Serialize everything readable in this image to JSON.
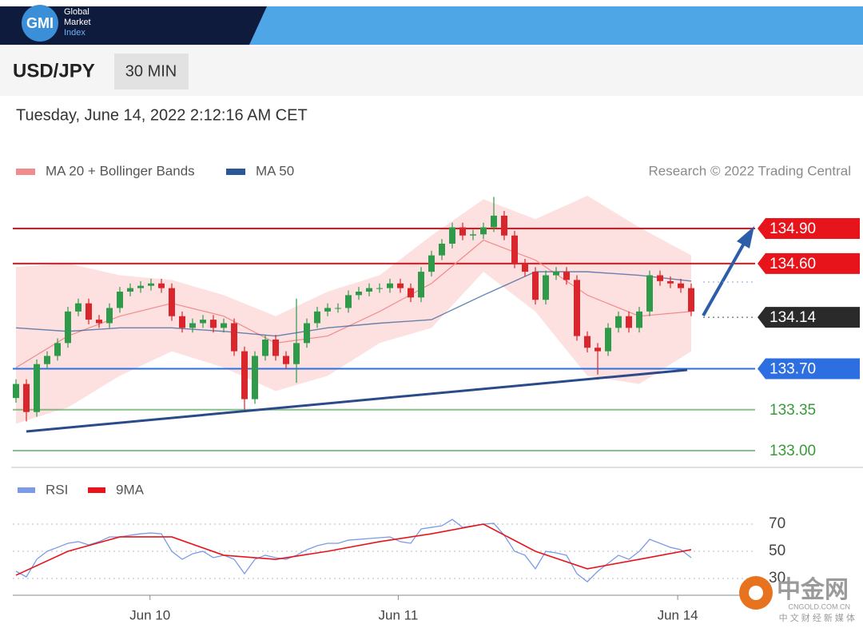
{
  "header": {
    "logo": "GMI",
    "brand": [
      "Global",
      "Market",
      "Index"
    ]
  },
  "watermark": {
    "name": "中金网",
    "site": "CNGOLD.COM.CN",
    "tagline": "中 文 财 经 新 媒 体"
  },
  "chart_data": [
    {
      "type": "candlestick",
      "title": "USD/JPY",
      "timeframe": "30 MIN",
      "subtitle": "Tuesday, June 14, 2022 2:12:16 AM CET",
      "credit": "Research © 2022 Trading Central",
      "up_color": "#2f9a4a",
      "down_color": "#d8262c",
      "x": [
        0,
        1,
        2,
        3,
        4,
        5,
        6,
        7,
        8,
        9,
        10,
        11,
        12,
        13,
        14,
        15,
        16,
        17,
        18,
        19,
        20,
        21,
        22,
        23,
        24,
        25,
        26,
        27,
        28,
        29,
        30,
        31,
        32,
        33,
        34,
        35,
        36,
        37,
        38,
        39,
        40,
        41,
        42,
        43,
        44,
        45,
        46,
        47,
        48,
        49,
        50,
        51,
        52,
        53,
        54,
        55,
        56,
        57,
        58,
        59,
        60,
        61,
        62,
        63,
        64,
        65
      ],
      "open": [
        133.45,
        133.57,
        133.33,
        133.74,
        133.81,
        133.92,
        134.19,
        134.26,
        134.12,
        134.09,
        134.22,
        134.36,
        134.39,
        134.41,
        134.43,
        134.39,
        134.15,
        134.05,
        134.09,
        134.12,
        134.05,
        134.09,
        133.85,
        133.44,
        133.81,
        133.95,
        133.81,
        133.74,
        133.92,
        134.09,
        134.19,
        134.22,
        134.22,
        134.33,
        134.36,
        134.39,
        134.39,
        134.43,
        134.39,
        134.31,
        134.53,
        134.67,
        134.77,
        134.91,
        134.84,
        134.85,
        134.91,
        135.01,
        134.84,
        134.6,
        134.53,
        134.29,
        134.5,
        134.53,
        134.46,
        133.98,
        133.88,
        133.85,
        134.05,
        134.15,
        134.05,
        134.19,
        134.5,
        134.45,
        134.43,
        134.39
      ],
      "high": [
        133.61,
        133.61,
        133.78,
        133.85,
        133.96,
        134.23,
        134.3,
        134.3,
        134.16,
        134.26,
        134.4,
        134.43,
        134.45,
        134.47,
        134.47,
        134.43,
        134.19,
        134.13,
        134.16,
        134.16,
        134.13,
        134.13,
        133.89,
        133.85,
        133.99,
        133.99,
        133.85,
        134.3,
        134.13,
        134.23,
        134.26,
        134.26,
        134.37,
        134.4,
        134.43,
        134.43,
        134.47,
        134.47,
        134.43,
        134.57,
        134.71,
        134.81,
        134.95,
        134.95,
        134.89,
        134.95,
        135.17,
        135.05,
        134.88,
        134.64,
        134.57,
        134.54,
        134.57,
        134.57,
        134.5,
        134.02,
        133.92,
        134.09,
        134.19,
        134.19,
        134.23,
        134.54,
        134.54,
        134.49,
        134.47,
        134.43
      ],
      "low": [
        133.41,
        133.25,
        133.29,
        133.7,
        133.77,
        133.88,
        134.15,
        134.08,
        134.05,
        134.05,
        134.18,
        134.32,
        134.35,
        134.37,
        134.35,
        134.11,
        134.01,
        134.01,
        134.05,
        134.01,
        134.01,
        133.81,
        133.35,
        133.4,
        133.77,
        133.77,
        133.7,
        133.58,
        133.88,
        134.05,
        134.15,
        134.18,
        134.18,
        134.29,
        134.32,
        134.35,
        134.35,
        134.35,
        134.27,
        134.27,
        134.49,
        134.63,
        134.73,
        134.8,
        134.8,
        134.81,
        134.87,
        134.8,
        134.56,
        134.49,
        134.25,
        134.25,
        134.46,
        134.42,
        133.94,
        133.84,
        133.65,
        133.81,
        134.01,
        134.01,
        134.01,
        134.15,
        134.41,
        134.39,
        134.35,
        134.15
      ],
      "close": [
        133.57,
        133.33,
        133.74,
        133.81,
        133.92,
        134.19,
        134.26,
        134.12,
        134.09,
        134.22,
        134.36,
        134.39,
        134.41,
        134.43,
        134.39,
        134.15,
        134.05,
        134.09,
        134.12,
        134.05,
        134.09,
        133.85,
        133.44,
        133.81,
        133.95,
        133.81,
        133.74,
        133.92,
        134.09,
        134.19,
        134.22,
        134.22,
        134.33,
        134.36,
        134.39,
        134.39,
        134.43,
        134.39,
        134.31,
        134.53,
        134.67,
        134.77,
        134.91,
        134.84,
        134.85,
        134.91,
        135.01,
        134.84,
        134.6,
        134.53,
        134.29,
        134.5,
        134.53,
        134.46,
        133.98,
        133.88,
        133.85,
        134.05,
        134.15,
        134.05,
        134.19,
        134.5,
        134.45,
        134.43,
        134.39,
        134.19
      ],
      "overlays": [
        {
          "name": "MA 20 + Bollinger Bands",
          "color": "#f28b8b",
          "band_color": "#fde0e0",
          "x": [
            0,
            5,
            10,
            15,
            20,
            25,
            30,
            35,
            40,
            45,
            50,
            55,
            60,
            65
          ],
          "values": [
            133.71,
            133.98,
            134.15,
            134.26,
            134.15,
            133.92,
            133.98,
            134.19,
            134.43,
            134.8,
            134.63,
            134.33,
            134.15,
            134.19
          ],
          "upper": [
            134.57,
            134.6,
            134.5,
            134.46,
            134.33,
            134.15,
            134.36,
            134.5,
            134.84,
            135.15,
            134.98,
            135.18,
            134.91,
            134.67
          ],
          "lower": [
            133.23,
            133.37,
            133.64,
            133.85,
            133.71,
            133.51,
            133.64,
            133.92,
            134.05,
            134.53,
            134.19,
            133.64,
            133.57,
            133.85
          ]
        },
        {
          "name": "MA 50",
          "color": "#2b5797",
          "x": [
            0,
            5,
            10,
            15,
            20,
            25,
            30,
            35,
            40,
            45,
            50,
            55,
            60,
            65
          ],
          "values": [
            134.05,
            134.02,
            134.05,
            134.05,
            134.02,
            133.98,
            134.05,
            134.09,
            134.12,
            134.33,
            134.53,
            134.53,
            134.5,
            134.45
          ]
        }
      ],
      "levels": [
        {
          "value": 134.9,
          "label": "134.90",
          "color": "#e8141b",
          "style": "box",
          "line": "solid"
        },
        {
          "value": 134.6,
          "label": "134.60",
          "color": "#e8141b",
          "style": "box",
          "line": "solid"
        },
        {
          "value": 134.14,
          "label": "134.14",
          "color": "#2a2a2a",
          "style": "box",
          "line": "dotted"
        },
        {
          "value": 133.7,
          "label": "133.70",
          "color": "#2d6fe0",
          "style": "box",
          "line": "solid"
        },
        {
          "value": 133.35,
          "label": "133.35",
          "color": "#3a9a3a",
          "style": "text",
          "line": "solid"
        },
        {
          "value": 133,
          "label": "133.00",
          "color": "#3a9a3a",
          "style": "text",
          "line": "solid"
        }
      ],
      "xlim": [
        -0.5,
        66.5
      ],
      "ylim": [
        132.9,
        135.2
      ],
      "xticks": [
        {
          "value": 12.9,
          "label": "Jun 10"
        },
        {
          "value": 36.8,
          "label": "Jun 11"
        },
        {
          "value": 63.7,
          "label": "Jun 14"
        }
      ]
    },
    {
      "type": "line",
      "series": [
        {
          "name": "RSI",
          "color": "#7b9be6",
          "x": [
            0,
            1,
            2,
            3,
            4,
            5,
            6,
            7,
            8,
            9,
            10,
            11,
            12,
            13,
            14,
            15,
            16,
            17,
            18,
            19,
            20,
            21,
            22,
            23,
            24,
            25,
            26,
            27,
            28,
            29,
            30,
            31,
            32,
            33,
            34,
            35,
            36,
            37,
            38,
            39,
            40,
            41,
            42,
            43,
            44,
            45,
            46,
            47,
            48,
            49,
            50,
            51,
            52,
            53,
            54,
            55,
            56,
            57,
            58,
            59,
            60,
            61,
            62,
            63,
            64,
            65
          ],
          "values": [
            35.3,
            31.2,
            44.1,
            50,
            52.9,
            55.9,
            57.1,
            54.7,
            57.1,
            60.6,
            60.6,
            61.8,
            62.9,
            63.5,
            62.9,
            50,
            44.1,
            48.2,
            50,
            45.3,
            47.1,
            44.1,
            33.5,
            44.1,
            47.1,
            45.3,
            44.1,
            47.1,
            51.2,
            54.1,
            55.9,
            55.9,
            58.2,
            58.8,
            59.4,
            60,
            60.6,
            57.1,
            55.9,
            66.5,
            67.6,
            68.8,
            73.5,
            67.6,
            68.8,
            70,
            70.6,
            61.8,
            50,
            47.1,
            37.1,
            50,
            48.8,
            47.1,
            33.5,
            27.6,
            35.3,
            41.2,
            47.1,
            44.1,
            50,
            58.8,
            55.9,
            52.9,
            51.2,
            45.3
          ]
        },
        {
          "name": "9MA",
          "color": "#e8141b",
          "x": [
            0,
            5,
            10,
            15,
            20,
            25,
            30,
            35,
            40,
            45,
            50,
            55,
            60,
            65
          ],
          "values": [
            32.4,
            50,
            60.6,
            60.6,
            47.1,
            44.1,
            50,
            57.1,
            62.9,
            70,
            50,
            37.1,
            44.1,
            51.2
          ]
        }
      ],
      "xlim": [
        -0.5,
        66.5
      ],
      "ylim": [
        20,
        80
      ],
      "yticks": [
        70,
        50,
        30
      ],
      "grid": true
    }
  ]
}
